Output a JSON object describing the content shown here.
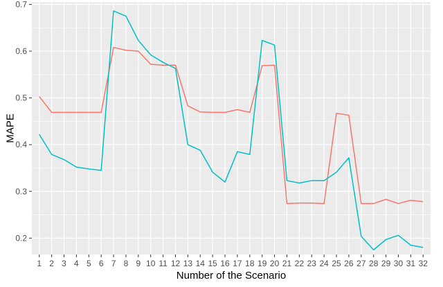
{
  "chart_data": {
    "type": "line",
    "title": "",
    "xlabel": "Number of the Scenario",
    "ylabel": "MAPE",
    "x": [
      "1",
      "2",
      "3",
      "4",
      "5",
      "6",
      "7",
      "8",
      "9",
      "10",
      "11",
      "12",
      "13",
      "14",
      "15",
      "16",
      "17",
      "18",
      "19",
      "20",
      "21",
      "22",
      "23",
      "24",
      "25",
      "26",
      "27",
      "28",
      "29",
      "30",
      "31",
      "32"
    ],
    "ylim": [
      0.165,
      0.705
    ],
    "yticks": [
      0.2,
      0.3,
      0.4,
      0.5,
      0.6,
      0.7
    ],
    "grid": true,
    "legend": "none",
    "series": [
      {
        "color": "#F8766D",
        "values": [
          0.503,
          0.469,
          0.469,
          0.469,
          0.469,
          0.469,
          0.608,
          0.602,
          0.6,
          0.572,
          0.57,
          0.57,
          0.483,
          0.47,
          0.469,
          0.469,
          0.475,
          0.469,
          0.569,
          0.57,
          0.274,
          0.275,
          0.275,
          0.274,
          0.467,
          0.463,
          0.274,
          0.274,
          0.283,
          0.274,
          0.281,
          0.278
        ]
      },
      {
        "color": "#00BFC4",
        "values": [
          0.422,
          0.379,
          0.368,
          0.352,
          0.348,
          0.345,
          0.686,
          0.675,
          0.623,
          0.592,
          0.576,
          0.563,
          0.4,
          0.388,
          0.341,
          0.32,
          0.385,
          0.379,
          0.623,
          0.613,
          0.323,
          0.318,
          0.323,
          0.323,
          0.341,
          0.372,
          0.204,
          0.175,
          0.197,
          0.206,
          0.185,
          0.18
        ]
      }
    ]
  }
}
